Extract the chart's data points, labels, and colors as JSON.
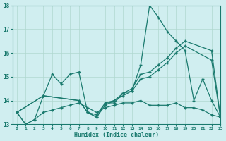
{
  "xlabel": "Humidex (Indice chaleur)",
  "xlim": [
    -0.5,
    23
  ],
  "ylim": [
    13,
    18
  ],
  "xticks": [
    0,
    1,
    2,
    3,
    4,
    5,
    6,
    7,
    8,
    9,
    10,
    11,
    12,
    13,
    14,
    15,
    16,
    17,
    18,
    19,
    20,
    21,
    22,
    23
  ],
  "yticks": [
    13,
    14,
    15,
    16,
    17,
    18
  ],
  "background_color": "#d0eef0",
  "grid_color": "#b0d8d0",
  "line_color": "#1a7a6e",
  "lines": [
    {
      "x": [
        0,
        1,
        2,
        3,
        4,
        5,
        6,
        7,
        8,
        9,
        10,
        11,
        12,
        13,
        14,
        15,
        16,
        17,
        18,
        19,
        20,
        21,
        22,
        23
      ],
      "y": [
        13.5,
        13.0,
        13.2,
        14.2,
        15.1,
        14.7,
        15.1,
        15.2,
        13.5,
        13.3,
        13.9,
        13.9,
        14.3,
        14.4,
        15.5,
        18.0,
        17.5,
        16.9,
        16.5,
        16.1,
        14.0,
        14.9,
        14.0,
        13.3
      ]
    },
    {
      "x": [
        0,
        3,
        7,
        8,
        9,
        10,
        11,
        12,
        13,
        14,
        15,
        16,
        17,
        18,
        19,
        22,
        23
      ],
      "y": [
        13.5,
        14.2,
        14.0,
        13.5,
        13.4,
        13.9,
        14.0,
        14.3,
        14.5,
        15.1,
        15.2,
        15.5,
        15.8,
        16.2,
        16.5,
        16.1,
        13.3
      ]
    },
    {
      "x": [
        0,
        3,
        7,
        8,
        9,
        10,
        11,
        12,
        13,
        14,
        15,
        16,
        17,
        18,
        19,
        22,
        23
      ],
      "y": [
        13.5,
        14.2,
        14.0,
        13.5,
        13.3,
        13.8,
        14.0,
        14.2,
        14.4,
        14.9,
        15.0,
        15.3,
        15.6,
        16.0,
        16.3,
        15.7,
        13.3
      ]
    },
    {
      "x": [
        0,
        1,
        2,
        3,
        4,
        5,
        6,
        7,
        8,
        9,
        10,
        11,
        12,
        13,
        14,
        15,
        16,
        17,
        18,
        19,
        20,
        21,
        22,
        23
      ],
      "y": [
        13.5,
        13.0,
        13.2,
        13.5,
        13.6,
        13.7,
        13.8,
        13.9,
        13.7,
        13.5,
        13.7,
        13.8,
        13.9,
        13.9,
        14.0,
        13.8,
        13.8,
        13.8,
        13.9,
        13.7,
        13.7,
        13.6,
        13.4,
        13.3
      ]
    }
  ]
}
